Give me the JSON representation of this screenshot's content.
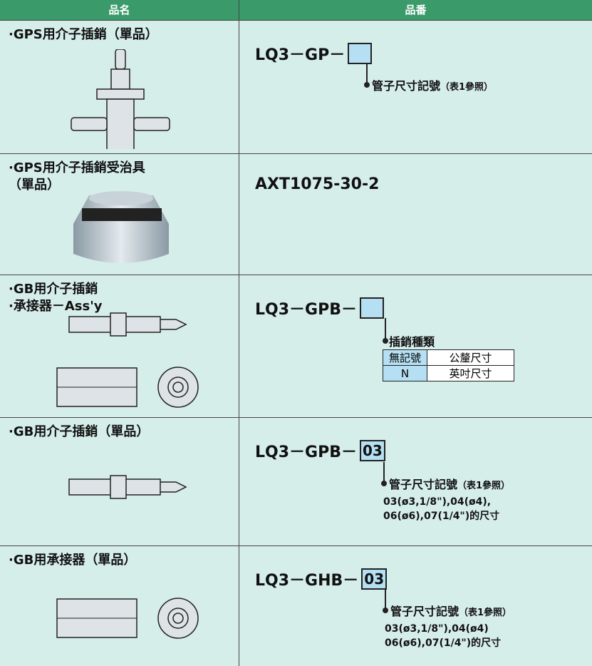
{
  "table": {
    "headers": [
      "品名",
      "品番"
    ],
    "rows": [
      {
        "name": [
          "·GPS用介子插銷（單品）"
        ],
        "code": "LQ3－GP－",
        "callout": "管子尺寸記號",
        "ref": "（表1參照）"
      },
      {
        "name": [
          "·GPS用介子插銷受治具",
          "（單品）"
        ],
        "code": "AXT1075-30-2"
      },
      {
        "name": [
          "·GB用介子插銷",
          "·承接器－Ass'y"
        ],
        "code": "LQ3－GPB－",
        "callout": "插銷種類",
        "options": [
          [
            "無記號",
            "公釐尺寸"
          ],
          [
            "N",
            "英吋尺寸"
          ]
        ]
      },
      {
        "name": [
          "·GB用介子插銷（單品）"
        ],
        "code": "LQ3－GPB－",
        "box": "03",
        "callout": "管子尺寸記號",
        "ref": "（表1參照）",
        "details": [
          "03(ø3,1/8\"),04(ø4),",
          "06(ø6),07(1/4\")的尺寸"
        ]
      },
      {
        "name": [
          "·GB用承接器（單品）"
        ],
        "code": "LQ3－GHB－",
        "box": "03",
        "callout": "管子尺寸記號",
        "ref": "（表1參照）",
        "details": [
          "03(ø3,1/8\"),04(ø4)",
          "06(ø6),07(1/4\")的尺寸"
        ]
      }
    ]
  }
}
